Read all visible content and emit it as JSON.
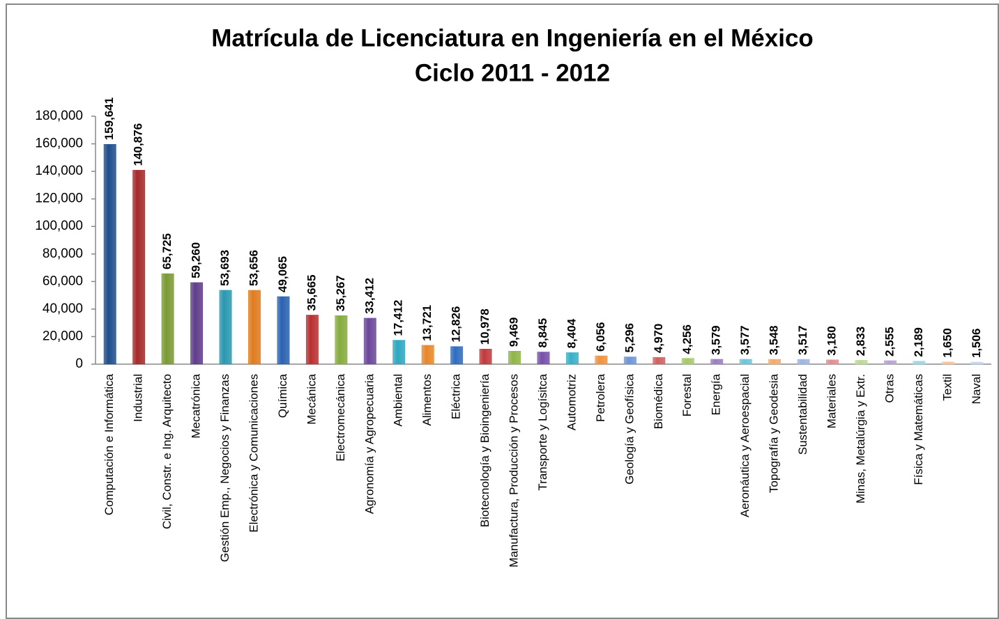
{
  "chart_data": {
    "type": "bar",
    "title": [
      "Matrícula de Licenciatura en Ingeniería en el México",
      "Ciclo 2011 - 2012"
    ],
    "categories": [
      "Computación e Informática",
      "Industrial",
      "Civil, Constr. e Ing. Arquitecto",
      "Mecatrónica",
      "Gestión Emp., Negocios y Finanzas",
      "Electrónica y Comunicaciones",
      "Química",
      "Mecánica",
      "Electromecánica",
      "Agronomía y Agropecuaria",
      "Ambiental",
      "Alimentos",
      "Eléctrica",
      "Biotecnología y Bioingeniería",
      "Manufactura, Producción y Procesos",
      "Transporte y Logísitca",
      "Automotriz",
      "Petrolera",
      "Geología y Geofísica",
      "Biomédica",
      "Forestal",
      "Energía",
      "Aeronáutica y Aeroespacial",
      "Topografía y Geodesia",
      "Sustentabilidad",
      "Materiales",
      "Minas, Metalúrgia y Extr.",
      "Otras",
      "Física y Matemáticas",
      "Textil",
      "Naval"
    ],
    "values": [
      159641,
      140876,
      65725,
      59260,
      53693,
      53656,
      49065,
      35665,
      35267,
      33412,
      17412,
      13721,
      12826,
      10978,
      9469,
      8845,
      8404,
      6056,
      5296,
      4970,
      4256,
      3579,
      3577,
      3548,
      3517,
      3180,
      2833,
      2555,
      2189,
      1650,
      1506
    ],
    "value_labels": [
      "159,641",
      "140,876",
      "65,725",
      "59,260",
      "53,693",
      "53,656",
      "49,065",
      "35,665",
      "35,267",
      "33,412",
      "17,412",
      "13,721",
      "12,826",
      "10,978",
      "9,469",
      "8,845",
      "8,404",
      "6,056",
      "5,296",
      "4,970",
      "4,256",
      "3,579",
      "3,577",
      "3,548",
      "3,517",
      "3,180",
      "2,833",
      "2,555",
      "2,189",
      "1,650",
      "1,506"
    ],
    "colors": [
      "#1f4e8c",
      "#a52a2a",
      "#7a9a35",
      "#5f3d8a",
      "#2a98b0",
      "#e07b1f",
      "#2a62b0",
      "#b83030",
      "#86ab3f",
      "#6b479a",
      "#2fa7c0",
      "#e8862a",
      "#2f6cc0",
      "#c03a3a",
      "#8fb548",
      "#7650a8",
      "#38b0c8",
      "#ef9340",
      "#6f95d6",
      "#d06060",
      "#a6c86a",
      "#9a7ec0",
      "#6cc4d8",
      "#f3aa6a",
      "#9ab6e4",
      "#e08e8e",
      "#bcd894",
      "#b6a2d4",
      "#9cd6e6",
      "#f6c396",
      "#c2d4f0"
    ],
    "ylim": [
      0,
      180000
    ],
    "yticks": [
      0,
      {
        "value": 20000,
        "label": "20,000"
      },
      {
        "value": 40000,
        "label": "40,000"
      },
      {
        "value": 60000,
        "label": "60,000"
      },
      {
        "value": 80000,
        "label": "80,000"
      },
      {
        "value": 100000,
        "label": "100,000"
      },
      {
        "value": 120000,
        "label": "120,000"
      },
      {
        "value": 140000,
        "label": "140,000"
      },
      {
        "value": 160000,
        "label": "160,000"
      },
      {
        "value": 180000,
        "label": "180,000"
      }
    ]
  }
}
